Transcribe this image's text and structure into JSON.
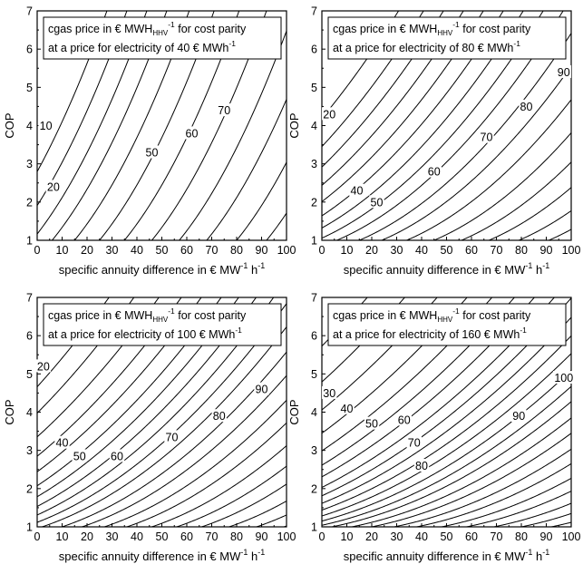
{
  "chart_data": [
    {
      "type": "contour",
      "legend_lines": [
        [
          "cgas price in € MWH",
          "HHV",
          "-1",
          " for cost parity"
        ],
        [
          "at a price for electricity of 40 € MWh",
          "",
          "-1",
          ""
        ]
      ],
      "xlabel": [
        "specific annuity difference in € MW",
        "-1",
        " h",
        "-1"
      ],
      "ylabel": "COP",
      "xlim": [
        0,
        100
      ],
      "ylim": [
        1,
        7
      ],
      "xticks": [
        "0",
        "10",
        "20",
        "30",
        "40",
        "50",
        "60",
        "70",
        "80",
        "90",
        "100"
      ],
      "yticks": [
        "1",
        "2",
        "3",
        "4",
        "5",
        "6",
        "7"
      ],
      "electricity_price": 40,
      "contour_labels": [
        {
          "text": "10",
          "x": 3.5,
          "y": 4.0
        },
        {
          "text": "20",
          "x": 6.5,
          "y": 2.4
        },
        {
          "text": "50",
          "x": 46,
          "y": 3.3
        },
        {
          "text": "60",
          "x": 62,
          "y": 3.8
        },
        {
          "text": "70",
          "x": 75,
          "y": 4.4
        }
      ]
    },
    {
      "type": "contour",
      "legend_lines": [
        [
          "cgas price in € MWH",
          "HHV",
          "-1",
          " for cost parity"
        ],
        [
          "at a price for electricity of 80 € MWh",
          "",
          "-1",
          ""
        ]
      ],
      "xlabel": [
        "specific annuity difference in € MW",
        "-1",
        " h",
        "-1"
      ],
      "ylabel": "COP",
      "xlim": [
        0,
        100
      ],
      "ylim": [
        1,
        7
      ],
      "xticks": [
        "0",
        "10",
        "20",
        "30",
        "40",
        "50",
        "60",
        "70",
        "80",
        "90",
        "100"
      ],
      "yticks": [
        "1",
        "2",
        "3",
        "4",
        "5",
        "6",
        "7"
      ],
      "electricity_price": 80,
      "contour_labels": [
        {
          "text": "20",
          "x": 3,
          "y": 4.3
        },
        {
          "text": "40",
          "x": 14,
          "y": 2.3
        },
        {
          "text": "50",
          "x": 22,
          "y": 2.0
        },
        {
          "text": "60",
          "x": 45,
          "y": 2.8
        },
        {
          "text": "70",
          "x": 66,
          "y": 3.7
        },
        {
          "text": "80",
          "x": 82,
          "y": 4.5
        },
        {
          "text": "90",
          "x": 97,
          "y": 5.4
        }
      ]
    },
    {
      "type": "contour",
      "legend_lines": [
        [
          "cgas price in € MWH",
          "HHV",
          "-1",
          " for cost parity"
        ],
        [
          "at a price for electricity of 100 € MWh",
          "",
          "-1",
          ""
        ]
      ],
      "xlabel": [
        "specific annuity difference in € MW",
        "-1",
        " h",
        "-1"
      ],
      "ylabel": "COP",
      "xlim": [
        0,
        100
      ],
      "ylim": [
        1,
        7
      ],
      "xticks": [
        "0",
        "10",
        "20",
        "30",
        "40",
        "50",
        "60",
        "70",
        "80",
        "90",
        "100"
      ],
      "yticks": [
        "1",
        "2",
        "3",
        "4",
        "5",
        "6",
        "7"
      ],
      "electricity_price": 100,
      "contour_labels": [
        {
          "text": "20",
          "x": 2.5,
          "y": 5.2
        },
        {
          "text": "40",
          "x": 10,
          "y": 3.2
        },
        {
          "text": "50",
          "x": 17,
          "y": 2.85
        },
        {
          "text": "60",
          "x": 32,
          "y": 2.85
        },
        {
          "text": "70",
          "x": 54,
          "y": 3.35
        },
        {
          "text": "80",
          "x": 73,
          "y": 3.9
        },
        {
          "text": "90",
          "x": 90,
          "y": 4.6
        }
      ]
    },
    {
      "type": "contour",
      "legend_lines": [
        [
          "cgas price in € MWH",
          "HHV",
          "-1",
          " for cost parity"
        ],
        [
          "at a price for electricity of 160 € MWh",
          "",
          "-1",
          ""
        ]
      ],
      "xlabel": [
        "specific annuity difference in € MW",
        "-1",
        " h",
        "-1"
      ],
      "ylabel": "COP",
      "xlim": [
        0,
        100
      ],
      "ylim": [
        1,
        7
      ],
      "xticks": [
        "0",
        "10",
        "20",
        "30",
        "40",
        "50",
        "60",
        "70",
        "80",
        "90",
        "100"
      ],
      "yticks": [
        "1",
        "2",
        "3",
        "4",
        "5",
        "6",
        "7"
      ],
      "electricity_price": 160,
      "contour_labels": [
        {
          "text": "30",
          "x": 3,
          "y": 4.5
        },
        {
          "text": "40",
          "x": 10,
          "y": 4.1
        },
        {
          "text": "50",
          "x": 20,
          "y": 3.7
        },
        {
          "text": "60",
          "x": 33,
          "y": 3.8
        },
        {
          "text": "70",
          "x": 37,
          "y": 3.2
        },
        {
          "text": "80",
          "x": 40,
          "y": 2.6
        },
        {
          "text": "90",
          "x": 79,
          "y": 3.9
        },
        {
          "text": "100",
          "x": 97,
          "y": 4.9
        }
      ]
    }
  ]
}
